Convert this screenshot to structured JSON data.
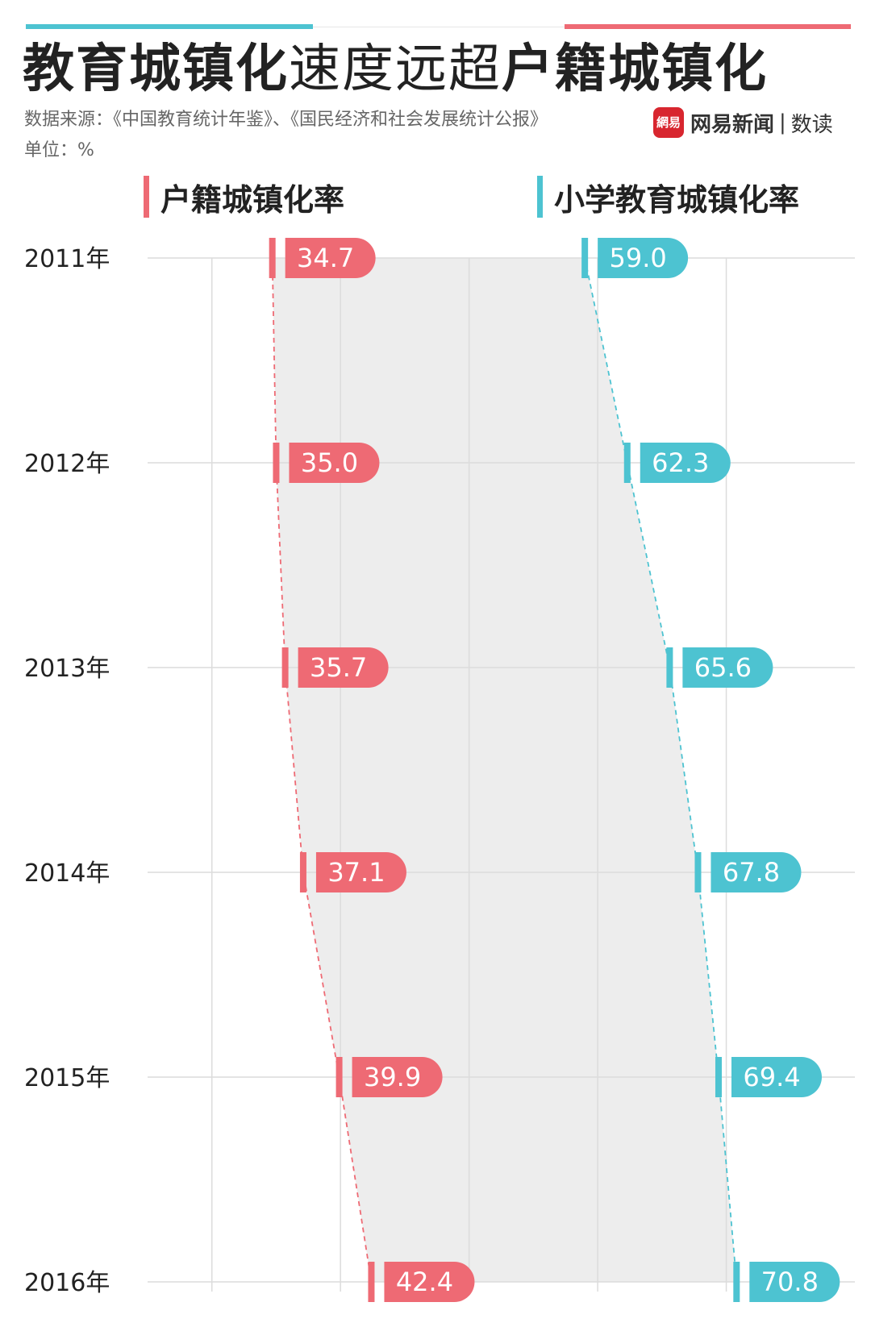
{
  "title": {
    "part1": "教育城镇化",
    "part2": "速度远超",
    "part3": "户籍城镇化"
  },
  "source": "数据来源：《中国教育统计年鉴》、《国民经济和社会发展统计公报》",
  "unit": "单位：%",
  "brand": {
    "logo_text": "網易",
    "name": "网易新闻",
    "separator": "|",
    "sub": "数读"
  },
  "colors": {
    "hukou": "#ee6a74",
    "edu": "#4dc3d1",
    "band": "#ededed",
    "grid": "#dcdcdc",
    "connector_pink": "#ee6a74",
    "connector_teal": "#4dc3d1"
  },
  "chart_data": {
    "type": "bar",
    "orientation": "horizontal",
    "categories": [
      "2011年",
      "2012年",
      "2013年",
      "2014年",
      "2015年",
      "2016年"
    ],
    "series": [
      {
        "name": "户籍城镇化率",
        "values": [
          34.7,
          35.0,
          35.7,
          37.1,
          39.9,
          42.4
        ]
      },
      {
        "name": "小学教育城镇化率",
        "values": [
          59.0,
          62.3,
          65.6,
          67.8,
          69.4,
          70.8
        ]
      }
    ],
    "xlim": [
      25,
      80
    ],
    "grid": true,
    "xlabel": "",
    "ylabel": ""
  }
}
